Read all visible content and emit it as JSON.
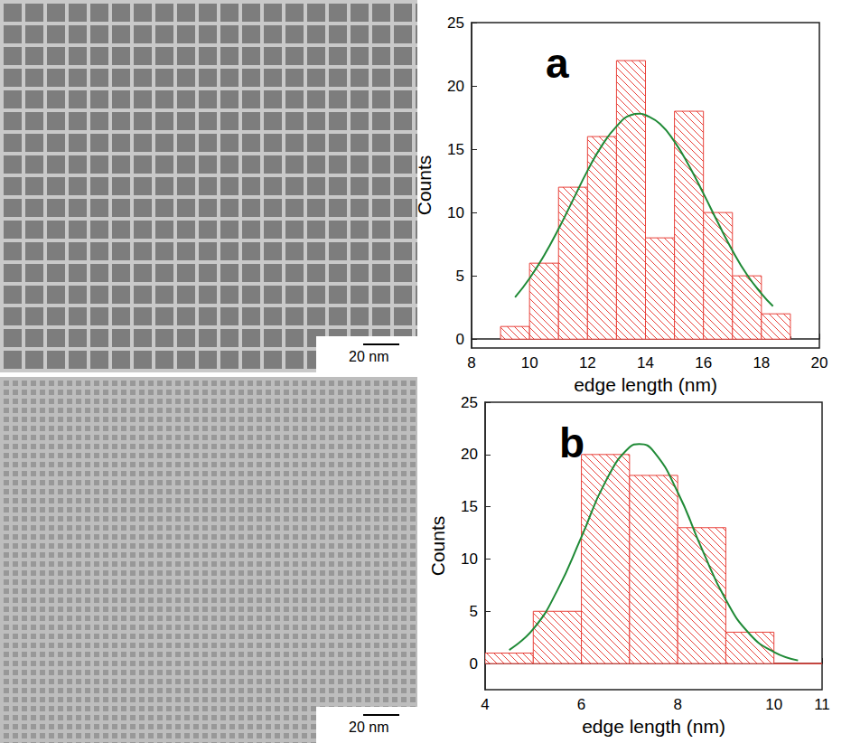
{
  "images": [
    {
      "scale_bar": "20 nm"
    },
    {
      "scale_bar": "20 nm"
    }
  ],
  "chart_data": [
    {
      "type": "histogram",
      "panel": "a",
      "xlabel": "edge length (nm)",
      "ylabel": "Counts",
      "bins": [
        9,
        10,
        11,
        12,
        13,
        14,
        15,
        16,
        17,
        18,
        19
      ],
      "counts": [
        1,
        6,
        12,
        16,
        22,
        8,
        18,
        10,
        5,
        2
      ],
      "color": "#e8413a",
      "xlim": [
        8,
        20
      ],
      "xticks": [
        8,
        10,
        12,
        14,
        16,
        18,
        20
      ],
      "ylim": [
        -0.7,
        25
      ],
      "yticks": [
        0,
        5,
        10,
        15,
        20,
        25
      ],
      "fit": {
        "color": "#1f8a36",
        "x": [
          9.5,
          10,
          10.5,
          11,
          11.5,
          12,
          12.5,
          13,
          13.5,
          13.8,
          14,
          14.5,
          15,
          15.5,
          16,
          16.5,
          17,
          17.5,
          18,
          18.4
        ],
        "y": [
          3.3,
          4.8,
          6.6,
          8.7,
          11.0,
          13.3,
          15.3,
          16.8,
          17.7,
          17.8,
          17.7,
          17.0,
          15.6,
          13.7,
          11.5,
          9.2,
          7.0,
          5.1,
          3.6,
          2.6
        ]
      }
    },
    {
      "type": "histogram",
      "panel": "b",
      "xlabel": "edge length (nm)",
      "ylabel": "Counts",
      "bins": [
        4,
        5,
        6,
        7,
        8,
        9,
        10,
        11
      ],
      "counts": [
        1,
        5,
        20,
        18,
        13,
        3,
        0
      ],
      "color": "#e8413a",
      "xlim": [
        4,
        11
      ],
      "xticks": [
        4,
        6,
        8,
        10
      ],
      "ylim": [
        -2.5,
        25
      ],
      "yticks": [
        0,
        5,
        10,
        15,
        20,
        25
      ],
      "fit": {
        "color": "#1f8a36",
        "x": [
          4.5,
          5,
          5.5,
          6,
          6.5,
          7,
          7.2,
          7.5,
          8,
          8.5,
          9,
          9.5,
          10,
          10.5
        ],
        "y": [
          1.3,
          3.3,
          7.0,
          12.1,
          17.4,
          20.7,
          21.0,
          20.3,
          16.4,
          11.0,
          6.1,
          2.8,
          1.1,
          0.3
        ]
      }
    }
  ]
}
